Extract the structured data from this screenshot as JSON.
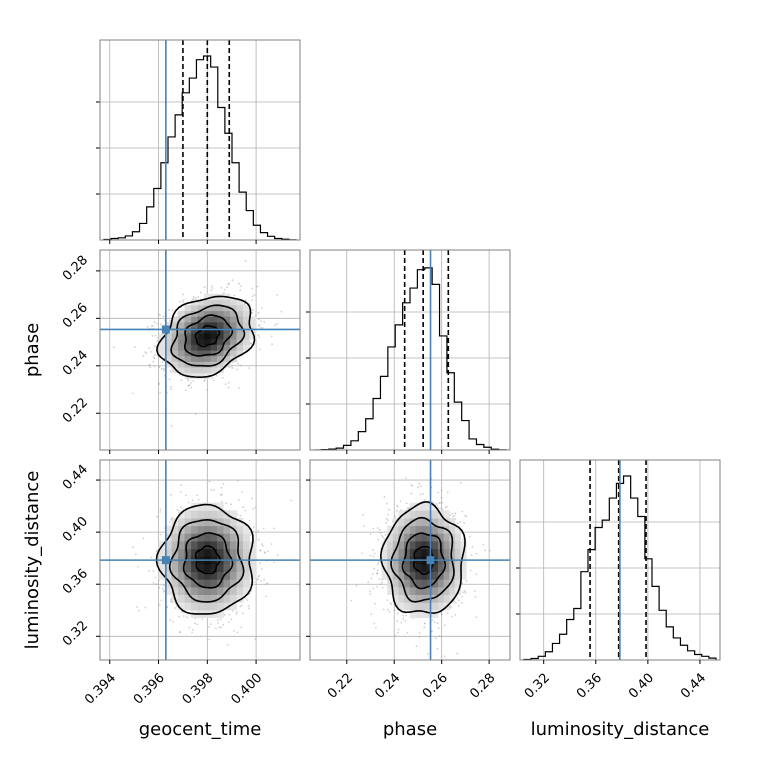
{
  "chart_data": {
    "type": "corner",
    "parameters": [
      "geocent_time",
      "phase",
      "luminosity_distance"
    ],
    "labels": {
      "geocent_time": "geocent_time",
      "phase": "phase",
      "luminosity_distance": "luminosity_distance"
    },
    "ranges": {
      "geocent_time": [
        0.3936,
        0.4018
      ],
      "phase": [
        0.2045,
        0.2888
      ],
      "luminosity_distance": [
        0.3018,
        0.4554
      ]
    },
    "ticks": {
      "geocent_time": {
        "values": [
          0.394,
          0.396,
          0.398,
          0.4
        ],
        "labels": [
          "0.394",
          "0.396",
          "0.398",
          "0.400"
        ]
      },
      "phase": {
        "values": [
          0.22,
          0.24,
          0.26,
          0.28
        ],
        "labels": [
          "0.22",
          "0.24",
          "0.26",
          "0.28"
        ]
      },
      "luminosity_distance": {
        "values": [
          0.32,
          0.36,
          0.4,
          0.44
        ],
        "labels": [
          "0.32",
          "0.36",
          "0.40",
          "0.44"
        ]
      }
    },
    "truths": {
      "geocent_time": 0.3963,
      "phase": 0.2553,
      "luminosity_distance": 0.3785
    },
    "quantiles": {
      "geocent_time": [
        0.397,
        0.398,
        0.3989
      ],
      "phase": [
        0.2444,
        0.2522,
        0.2628
      ],
      "luminosity_distance": [
        0.3556,
        0.3776,
        0.3986
      ]
    },
    "histograms": {
      "geocent_time": [
        0.003,
        0.008,
        0.012,
        0.022,
        0.045,
        0.09,
        0.18,
        0.28,
        0.42,
        0.56,
        0.68,
        0.8,
        0.88,
        0.98,
        1.0,
        0.94,
        0.72,
        0.58,
        0.42,
        0.26,
        0.16,
        0.08,
        0.04,
        0.02,
        0.008,
        0.004,
        0.001
      ],
      "phase": [
        0.0,
        0.002,
        0.005,
        0.01,
        0.025,
        0.05,
        0.1,
        0.17,
        0.28,
        0.4,
        0.56,
        0.68,
        0.8,
        0.88,
        0.98,
        0.99,
        0.9,
        0.62,
        0.42,
        0.26,
        0.16,
        0.06,
        0.03,
        0.015,
        0.004,
        0.001
      ],
      "luminosity_distance": [
        0.003,
        0.008,
        0.02,
        0.045,
        0.09,
        0.14,
        0.22,
        0.28,
        0.48,
        0.6,
        0.72,
        0.76,
        0.88,
        0.96,
        1.0,
        0.88,
        0.78,
        0.55,
        0.4,
        0.27,
        0.18,
        0.12,
        0.08,
        0.05,
        0.03,
        0.02,
        0.01
      ]
    },
    "joint": [
      {
        "x": "geocent_time",
        "y": "phase",
        "mean": [
          0.398,
          0.2525
        ],
        "std": [
          0.00095,
          0.0085
        ],
        "corr": 0.25
      },
      {
        "x": "geocent_time",
        "y": "luminosity_distance",
        "mean": [
          0.398,
          0.3785
        ],
        "std": [
          0.00095,
          0.021
        ],
        "corr": 0.0
      },
      {
        "x": "phase",
        "y": "luminosity_distance",
        "mean": [
          0.2525,
          0.3785
        ],
        "std": [
          0.0085,
          0.021
        ],
        "corr": 0.0
      }
    ],
    "contour_levels_sigma": [
      0.5,
      1.0,
      1.5,
      2.0
    ],
    "grid": true,
    "colors": {
      "truth": "#4682b4",
      "line": "#000000",
      "grid": "#b0b0b0",
      "points": "#9a9a9a"
    }
  }
}
